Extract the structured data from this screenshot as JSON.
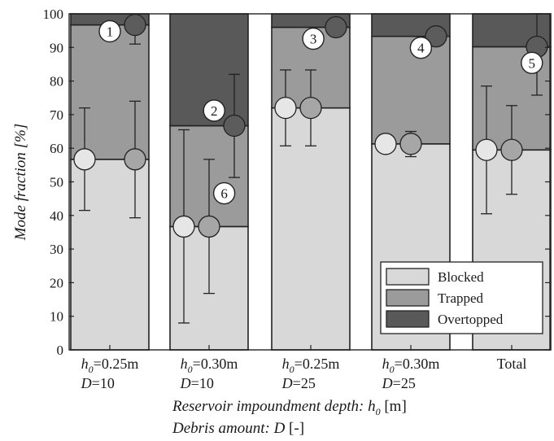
{
  "chart_data": {
    "type": "bar",
    "subtype": "stacked",
    "ylabel": "Mode fraction [%]",
    "ylim": [
      0,
      100
    ],
    "yticks": [
      0,
      10,
      20,
      30,
      40,
      50,
      60,
      70,
      80,
      90,
      100
    ],
    "xlabel_lines": [
      {
        "pre": "Reservoir impoundment depth: ",
        "sym": "h",
        "sub": "0",
        "post": " [m]"
      },
      {
        "pre": "Debris amount: ",
        "sym": "D",
        "sub": "",
        "post": " [-]"
      }
    ],
    "categories": [
      {
        "line1": {
          "sym": "h",
          "sub": "0",
          "rest": "=0.25m"
        },
        "line2": {
          "sym": "D",
          "rest": "=10"
        }
      },
      {
        "line1": {
          "sym": "h",
          "sub": "0",
          "rest": "=0.30m"
        },
        "line2": {
          "sym": "D",
          "rest": "=10"
        }
      },
      {
        "line1": {
          "sym": "h",
          "sub": "0",
          "rest": "=0.25m"
        },
        "line2": {
          "sym": "D",
          "rest": "=25"
        }
      },
      {
        "line1": {
          "sym": "h",
          "sub": "0",
          "rest": "=0.30m"
        },
        "line2": {
          "sym": "D",
          "rest": "=25"
        }
      },
      {
        "line1": {
          "plain": "Total"
        },
        "line2": null
      }
    ],
    "series": [
      {
        "name": "Blocked",
        "color": "#d8d8d8",
        "values": [
          56.7,
          36.7,
          72.0,
          61.3,
          59.5
        ]
      },
      {
        "name": "Trapped",
        "color": "#9b9b9b",
        "values": [
          40.0,
          30.0,
          24.0,
          32.0,
          30.7
        ]
      },
      {
        "name": "Overtopped",
        "color": "#595959",
        "values": [
          3.3,
          33.3,
          4.0,
          6.7,
          9.8
        ]
      }
    ],
    "markers": [
      {
        "category": 0,
        "offset": -1,
        "color": "#e6e6e6",
        "y": 56.7,
        "low": 41.5,
        "high": 72.0
      },
      {
        "category": 0,
        "offset": 1,
        "color": "#a6a6a6",
        "y": 56.7,
        "low": 39.3,
        "high": 74.0
      },
      {
        "category": 0,
        "offset": 1,
        "color": "#5c5c5c",
        "y": 96.7,
        "low": 91.0,
        "high": 99.0
      },
      {
        "category": 1,
        "offset": -1,
        "color": "#e6e6e6",
        "y": 36.7,
        "low": 8.0,
        "high": 65.5
      },
      {
        "category": 1,
        "offset": 0,
        "color": "#a6a6a6",
        "y": 36.7,
        "low": 16.8,
        "high": 56.7
      },
      {
        "category": 1,
        "offset": 1,
        "color": "#5c5c5c",
        "y": 66.7,
        "low": 51.3,
        "high": 82.0
      },
      {
        "category": 2,
        "offset": -1,
        "color": "#e6e6e6",
        "y": 72.0,
        "low": 60.7,
        "high": 83.3
      },
      {
        "category": 2,
        "offset": 0,
        "color": "#a6a6a6",
        "y": 72.0,
        "low": 60.7,
        "high": 83.3
      },
      {
        "category": 2,
        "offset": 1,
        "color": "#5c5c5c",
        "y": 96.0,
        "low": null,
        "high": null
      },
      {
        "category": 3,
        "offset": -1,
        "color": "#e6e6e6",
        "y": 61.3,
        "low": 59.0,
        "high": 63.7
      },
      {
        "category": 3,
        "offset": 0,
        "color": "#a6a6a6",
        "y": 61.3,
        "low": 57.5,
        "high": 65.0
      },
      {
        "category": 3,
        "offset": 1,
        "color": "#5c5c5c",
        "y": 93.3,
        "low": 91.8,
        "high": 95.0
      },
      {
        "category": 4,
        "offset": -1,
        "color": "#e6e6e6",
        "y": 59.5,
        "low": 40.5,
        "high": 78.5
      },
      {
        "category": 4,
        "offset": 0,
        "color": "#a6a6a6",
        "y": 59.5,
        "low": 46.3,
        "high": 72.7
      },
      {
        "category": 4,
        "offset": 1,
        "color": "#5c5c5c",
        "y": 90.2,
        "low": 75.8,
        "high": 100.0
      }
    ],
    "annotations": [
      {
        "text": "1",
        "category": 0,
        "offset": 0,
        "y": 94.8
      },
      {
        "text": "2",
        "category": 1,
        "offset": 0.2,
        "y": 71.2
      },
      {
        "text": "6",
        "category": 1,
        "offset": 0.6,
        "y": 46.6
      },
      {
        "text": "3",
        "category": 2,
        "offset": 0.1,
        "y": 92.6
      },
      {
        "text": "4",
        "category": 3,
        "offset": 0.4,
        "y": 89.9
      },
      {
        "text": "5",
        "category": 4,
        "offset": 0.8,
        "y": 85.4
      }
    ],
    "legend": {
      "position": "bottom-right"
    },
    "grid": false
  }
}
